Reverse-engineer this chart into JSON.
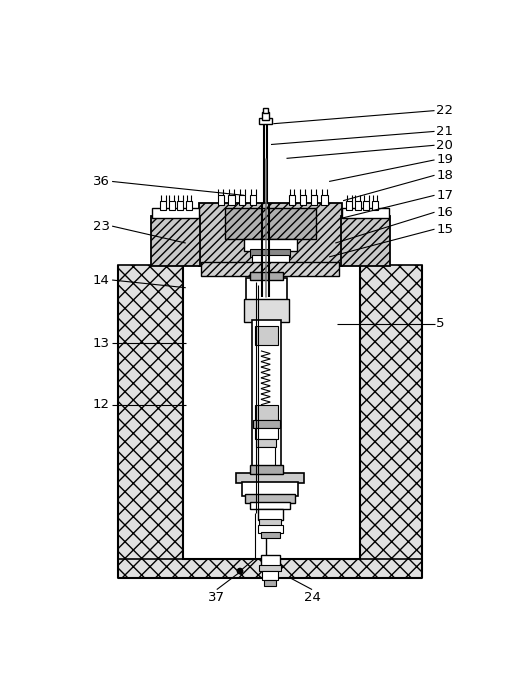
{
  "bg": "#ffffff",
  "lc": "#000000",
  "right_labels": [
    [
      "22",
      478,
      38,
      268,
      55
    ],
    [
      "21",
      478,
      65,
      265,
      82
    ],
    [
      "20",
      478,
      83,
      285,
      100
    ],
    [
      "19",
      478,
      102,
      340,
      130
    ],
    [
      "18",
      478,
      122,
      358,
      155
    ],
    [
      "17",
      478,
      148,
      355,
      178
    ],
    [
      "16",
      478,
      170,
      348,
      210
    ],
    [
      "15",
      478,
      192,
      340,
      228
    ],
    [
      "5",
      478,
      315,
      350,
      315
    ]
  ],
  "left_labels": [
    [
      "36",
      42,
      130,
      230,
      148
    ],
    [
      "23",
      42,
      188,
      155,
      210
    ],
    [
      "14",
      42,
      258,
      155,
      268
    ],
    [
      "13",
      42,
      340,
      155,
      340
    ],
    [
      "12",
      42,
      420,
      155,
      420
    ]
  ],
  "bottom_labels": [
    [
      "37",
      195,
      660,
      228,
      635
    ],
    [
      "24",
      318,
      660,
      290,
      645
    ]
  ]
}
